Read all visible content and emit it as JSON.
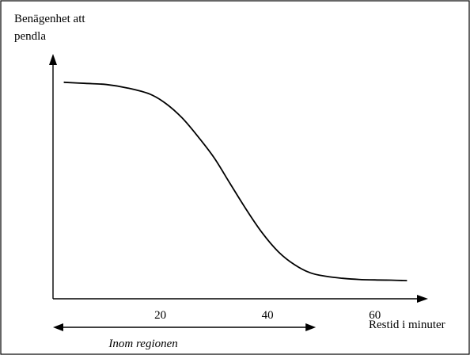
{
  "chart_data": {
    "type": "line",
    "ylabel_lines": [
      "Benägenhet att",
      "pendla"
    ],
    "xlabel": "Restid i minuter",
    "x_ticks": [
      20,
      40,
      60
    ],
    "xlim": [
      0,
      68
    ],
    "ylim": [
      0,
      1
    ],
    "series": [
      {
        "x": [
          2,
          6,
          10,
          14,
          18,
          21,
          24,
          27,
          30,
          33,
          36,
          39,
          42,
          45,
          48,
          51,
          54,
          57,
          60,
          63,
          66
        ],
        "y": [
          0.92,
          0.915,
          0.91,
          0.895,
          0.87,
          0.83,
          0.77,
          0.69,
          0.6,
          0.49,
          0.38,
          0.28,
          0.2,
          0.145,
          0.11,
          0.095,
          0.087,
          0.082,
          0.08,
          0.079,
          0.077
        ]
      }
    ],
    "range_annotation": {
      "label": "Inom regionen",
      "x_start": 0,
      "x_end": 49
    },
    "grid": false
  }
}
